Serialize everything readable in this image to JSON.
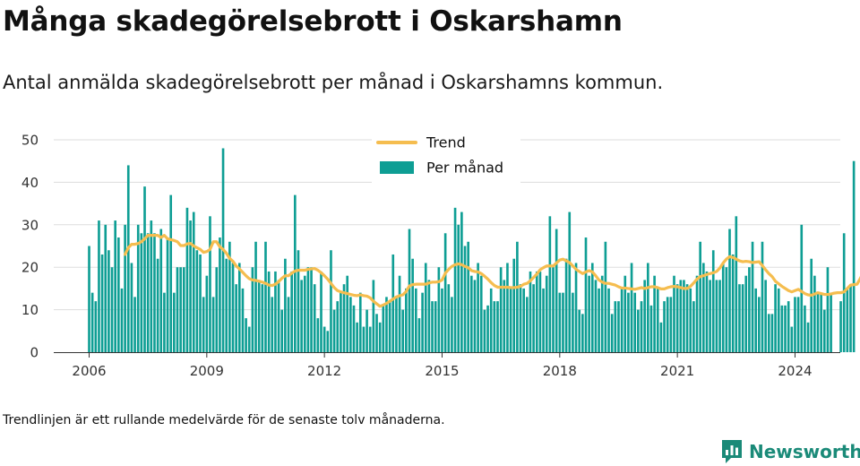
{
  "header": {
    "title": "Många skadegörelsebrott i Oskarshamn",
    "subtitle": "Antal anmälda skadegörelsebrott per månad i Oskarshamns kommun."
  },
  "footnote": "Trendlinjen är ett rullande medelvärde för de senaste tolv månaderna.",
  "brand": {
    "name": "Newsworthy",
    "icon": "newsworthy-logo-icon",
    "color": "#1a8a78"
  },
  "colors": {
    "bar": "#0e9e94",
    "trend": "#f5bd4f",
    "grid": "#dddddd",
    "axis": "#333333"
  },
  "chart_data": {
    "type": "bar",
    "x_start": "2006-01",
    "x_ticks": [
      "2006",
      "2009",
      "2012",
      "2015",
      "2018",
      "2021",
      "2024"
    ],
    "y_ticks": [
      0,
      10,
      20,
      30,
      40,
      50
    ],
    "ylim": [
      0,
      50
    ],
    "legend_position": "top-center",
    "grid": true,
    "series": [
      {
        "name": "Per månad",
        "type": "bar",
        "values": [
          25,
          14,
          12,
          31,
          23,
          30,
          24,
          20,
          31,
          27,
          15,
          30,
          44,
          21,
          13,
          30,
          28,
          39,
          28,
          31,
          28,
          22,
          29,
          14,
          27,
          37,
          14,
          20,
          20,
          20,
          34,
          31,
          33,
          24,
          23,
          13,
          18,
          32,
          13,
          20,
          27,
          48,
          22,
          26,
          21,
          16,
          21,
          15,
          8,
          6,
          20,
          26,
          17,
          16,
          26,
          19,
          13,
          19,
          17,
          10,
          22,
          13,
          19,
          37,
          24,
          17,
          18,
          20,
          20,
          16,
          8,
          19,
          6,
          5,
          24,
          10,
          12,
          14,
          16,
          18,
          13,
          11,
          7,
          14,
          6,
          10,
          6,
          17,
          9,
          7,
          11,
          13,
          12,
          23,
          13,
          18,
          10,
          15,
          29,
          22,
          15,
          8,
          14,
          21,
          17,
          12,
          12,
          20,
          15,
          28,
          16,
          13,
          34,
          30,
          33,
          25,
          26,
          18,
          17,
          21,
          18,
          10,
          11,
          15,
          12,
          12,
          20,
          17,
          21,
          15,
          22,
          26,
          16,
          15,
          13,
          19,
          16,
          19,
          19,
          15,
          18,
          32,
          20,
          29,
          14,
          14,
          22,
          33,
          14,
          21,
          10,
          9,
          27,
          18,
          21,
          17,
          15,
          18,
          26,
          15,
          9,
          12,
          12,
          15,
          18,
          14,
          21,
          14,
          10,
          12,
          17,
          21,
          11,
          18,
          15,
          7,
          12,
          13,
          13,
          18,
          16,
          17,
          17,
          16,
          15,
          12,
          18,
          26,
          21,
          19,
          17,
          24,
          17,
          17,
          21,
          20,
          29,
          23,
          32,
          16,
          16,
          18,
          20,
          26,
          15,
          13,
          26,
          17,
          9,
          9,
          16,
          15,
          11,
          11,
          12,
          6,
          13,
          13,
          30,
          11,
          7,
          22,
          18,
          14,
          14,
          10,
          20,
          14,
          0,
          0,
          12,
          28,
          15,
          16,
          45
        ]
      },
      {
        "name": "Trend",
        "type": "line",
        "start_index": 11,
        "values": [
          23.0,
          24.6,
          25.4,
          25.4,
          25.6,
          26.0,
          26.7,
          27.5,
          27.5,
          27.5,
          27.5,
          27.0,
          27.5,
          26.7,
          26.5,
          26.3,
          26.0,
          25.1,
          25.1,
          25.5,
          25.6,
          25.0,
          24.6,
          24.2,
          23.5,
          23.7,
          24.2,
          26.0,
          26.0,
          24.8,
          24.2,
          23.3,
          22.1,
          21.4,
          20.3,
          19.6,
          18.8,
          18.0,
          17.3,
          17.0,
          16.9,
          16.7,
          16.5,
          16.2,
          15.8,
          15.7,
          16.0,
          16.6,
          17.4,
          18.0,
          18.0,
          18.6,
          19.1,
          19.3,
          19.3,
          19.3,
          19.5,
          19.6,
          19.7,
          19.3,
          18.7,
          18.0,
          17.2,
          16.2,
          15.2,
          14.5,
          14.2,
          14.0,
          13.8,
          13.6,
          13.4,
          13.3,
          13.5,
          13.3,
          13.2,
          12.8,
          12.0,
          11.4,
          10.8,
          11.1,
          11.5,
          12.0,
          12.5,
          13.0,
          13.3,
          13.5,
          14.3,
          15.6,
          15.9,
          16.0,
          16.0,
          16.0,
          16.0,
          16.3,
          16.5,
          16.5,
          16.6,
          17.0,
          18.6,
          19.5,
          20.2,
          20.6,
          20.8,
          20.6,
          20.2,
          19.9,
          19.2,
          19.0,
          18.9,
          18.5,
          17.9,
          17.2,
          16.4,
          15.7,
          15.3,
          15.3,
          15.3,
          15.3,
          15.2,
          15.2,
          15.3,
          15.5,
          16.0,
          16.2,
          16.8,
          17.6,
          18.4,
          19.4,
          19.9,
          20.3,
          20.3,
          20.3,
          21.0,
          21.7,
          21.9,
          21.5,
          21.1,
          20.3,
          19.5,
          19.0,
          18.5,
          18.9,
          19.2,
          18.9,
          18.0,
          17.0,
          16.5,
          16.2,
          16.2,
          16.0,
          15.8,
          15.4,
          15.1,
          15.1,
          15.0,
          14.9,
          14.8,
          15.0,
          15.2,
          15.0,
          15.2,
          15.4,
          15.4,
          15.2,
          14.9,
          14.9,
          15.2,
          15.4,
          15.5,
          15.4,
          15.2,
          15.0,
          15.0,
          15.5,
          16.3,
          17.2,
          17.8,
          18.0,
          18.3,
          18.5,
          18.7,
          19.0,
          19.8,
          21.0,
          21.9,
          22.5,
          22.3,
          21.9,
          21.5,
          21.3,
          21.4,
          21.3,
          21.1,
          21.2,
          21.3,
          20.4,
          19.4,
          18.5,
          17.8,
          16.7,
          16.1,
          15.5,
          15.0,
          14.5,
          14.2,
          14.5,
          14.8,
          14.3,
          13.8,
          13.5,
          13.4,
          13.7,
          14.0,
          13.8,
          13.6,
          13.6,
          13.7,
          13.9,
          14.0,
          14.0,
          14.2,
          15.0,
          15.8,
          15.9,
          16.0,
          17.4,
          19.0
        ]
      }
    ]
  }
}
